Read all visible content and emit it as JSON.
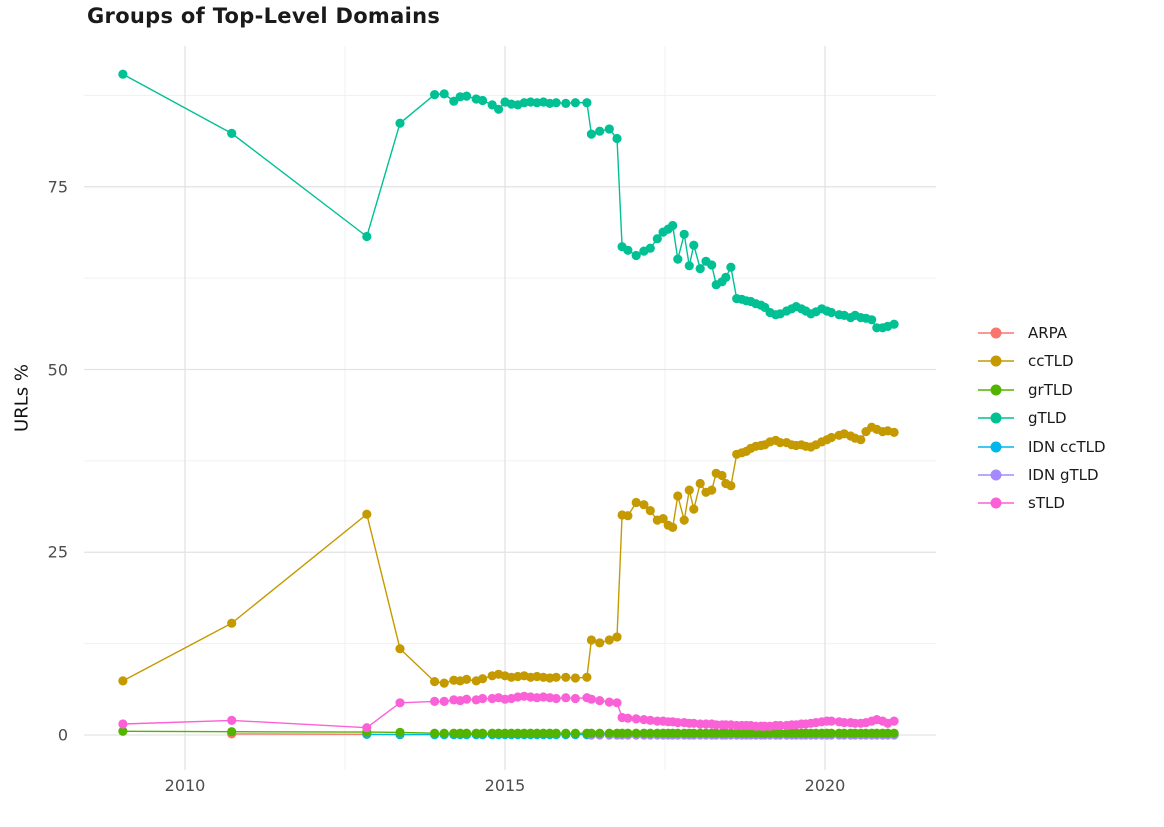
{
  "title": "Groups of Top-Level Domains",
  "chart_data": {
    "type": "line",
    "title": "Groups of Top-Level Domains",
    "xlabel": "",
    "ylabel": "URLs %",
    "x_ticks": [
      2010,
      2015,
      2020
    ],
    "x_tick_labels": [
      "2010",
      "2015",
      "2020"
    ],
    "y_ticks": [
      0,
      25,
      50,
      75
    ],
    "y_tick_labels": [
      "0",
      "25",
      "50",
      "75"
    ],
    "x_minor_gridlines": [
      2012.5,
      2017.5
    ],
    "y_minor_gridlines": [
      12.5,
      37.5,
      62.5,
      87.5
    ],
    "xlim": [
      2008.4,
      2021.8
    ],
    "ylim": [
      -4.5,
      95
    ],
    "grid": true,
    "legend_position": "right",
    "marker": "circle",
    "dense_x": [
      2013.9,
      2014.05,
      2014.2,
      2014.3,
      2014.4,
      2014.55,
      2014.65,
      2014.8,
      2014.9,
      2015.0,
      2015.1,
      2015.2,
      2015.3,
      2015.4,
      2015.5,
      2015.6,
      2015.7,
      2015.8,
      2015.95,
      2016.1,
      2016.28,
      2016.35,
      2016.48,
      2016.63,
      2016.75,
      2016.83,
      2016.92,
      2017.05,
      2017.17,
      2017.27,
      2017.38,
      2017.47,
      2017.55,
      2017.62,
      2017.7,
      2017.8,
      2017.88,
      2017.95,
      2018.05,
      2018.14,
      2018.23,
      2018.3,
      2018.39,
      2018.45,
      2018.53,
      2018.62,
      2018.7,
      2018.77,
      2018.84,
      2018.92,
      2019.0,
      2019.06,
      2019.14,
      2019.23,
      2019.3,
      2019.4,
      2019.48,
      2019.55,
      2019.63,
      2019.7,
      2019.78,
      2019.86,
      2019.95,
      2020.03,
      2020.1,
      2020.22,
      2020.3,
      2020.4,
      2020.47,
      2020.56,
      2020.64,
      2020.73,
      2020.81,
      2020.9,
      2020.98,
      2021.08
    ],
    "series": [
      {
        "name": "ARPA",
        "color": "#F8766D",
        "points": [
          [
            2010.73,
            0.15
          ],
          [
            2012.84,
            0.1
          ]
        ]
      },
      {
        "name": "ccTLD",
        "color": "#C49A00",
        "points": [
          [
            2009.03,
            7.4
          ],
          [
            2010.73,
            15.3
          ],
          [
            2012.84,
            30.2
          ],
          [
            2013.36,
            11.8
          ]
        ],
        "dense_values": [
          7.3,
          7.1,
          7.5,
          7.4,
          7.6,
          7.4,
          7.7,
          8.1,
          8.3,
          8.1,
          7.9,
          8.0,
          8.1,
          7.9,
          8.0,
          7.9,
          7.8,
          7.9,
          7.9,
          7.8,
          7.9,
          13.0,
          12.6,
          13.0,
          13.4,
          30.1,
          30.0,
          31.8,
          31.5,
          30.7,
          29.4,
          29.6,
          28.7,
          28.4,
          32.7,
          29.4,
          33.5,
          30.9,
          34.4,
          33.2,
          33.5,
          35.8,
          35.5,
          34.4,
          34.1,
          38.4,
          38.6,
          38.8,
          39.2,
          39.5,
          39.6,
          39.7,
          40.1,
          40.3,
          40.0,
          40.0,
          39.7,
          39.6,
          39.7,
          39.5,
          39.4,
          39.7,
          40.1,
          40.4,
          40.7,
          41.0,
          41.2,
          40.9,
          40.6,
          40.4,
          41.5,
          42.1,
          41.8,
          41.5,
          41.6,
          41.4
        ]
      },
      {
        "name": "grTLD",
        "color": "#53B400",
        "points": [
          [
            2009.03,
            0.5
          ],
          [
            2010.73,
            0.45
          ],
          [
            2012.84,
            0.4
          ],
          [
            2013.36,
            0.35
          ]
        ],
        "dense_from": 2013.9,
        "dense_value": 0.25
      },
      {
        "name": "gTLD",
        "color": "#00C094",
        "points": [
          [
            2009.03,
            90.4
          ],
          [
            2010.73,
            82.3
          ],
          [
            2012.84,
            68.2
          ],
          [
            2013.36,
            83.7
          ]
        ],
        "dense_values": [
          87.6,
          87.7,
          86.7,
          87.3,
          87.4,
          87.0,
          86.8,
          86.2,
          85.6,
          86.6,
          86.3,
          86.2,
          86.5,
          86.6,
          86.5,
          86.6,
          86.4,
          86.5,
          86.4,
          86.5,
          86.5,
          82.2,
          82.6,
          82.9,
          81.6,
          66.8,
          66.3,
          65.6,
          66.2,
          66.6,
          67.9,
          68.8,
          69.2,
          69.7,
          65.1,
          68.5,
          64.2,
          67.0,
          63.8,
          64.8,
          64.3,
          61.6,
          62.0,
          62.6,
          64.0,
          59.7,
          59.6,
          59.4,
          59.3,
          59.0,
          58.8,
          58.5,
          57.8,
          57.5,
          57.6,
          58.0,
          58.3,
          58.6,
          58.3,
          58.0,
          57.6,
          57.9,
          58.3,
          58.0,
          57.8,
          57.5,
          57.4,
          57.1,
          57.4,
          57.1,
          57.0,
          56.8,
          55.7,
          55.7,
          55.9,
          56.2
        ]
      },
      {
        "name": "IDN ccTLD",
        "color": "#00B6EB",
        "points": [
          [
            2012.84,
            0.1
          ],
          [
            2013.36,
            0.05
          ]
        ],
        "dense_from": 2013.9,
        "dense_value": 0.05
      },
      {
        "name": "IDN gTLD",
        "color": "#A58AFF",
        "points": [],
        "dense_from": 2016.35,
        "dense_value": 0.0
      },
      {
        "name": "sTLD",
        "color": "#FB61D7",
        "points": [
          [
            2009.03,
            1.5
          ],
          [
            2010.73,
            2.0
          ],
          [
            2012.84,
            1.0
          ],
          [
            2013.36,
            4.4
          ]
        ],
        "dense_values": [
          4.6,
          4.6,
          4.8,
          4.7,
          4.9,
          4.8,
          5.0,
          5.0,
          5.1,
          4.9,
          5.0,
          5.2,
          5.3,
          5.2,
          5.1,
          5.2,
          5.1,
          5.0,
          5.1,
          5.0,
          5.1,
          4.9,
          4.7,
          4.5,
          4.4,
          2.4,
          2.3,
          2.2,
          2.1,
          2.0,
          1.9,
          1.9,
          1.8,
          1.8,
          1.7,
          1.7,
          1.6,
          1.6,
          1.5,
          1.5,
          1.5,
          1.4,
          1.4,
          1.4,
          1.4,
          1.3,
          1.3,
          1.3,
          1.3,
          1.2,
          1.2,
          1.2,
          1.2,
          1.3,
          1.3,
          1.3,
          1.4,
          1.4,
          1.5,
          1.5,
          1.6,
          1.7,
          1.8,
          1.9,
          1.9,
          1.8,
          1.7,
          1.7,
          1.6,
          1.6,
          1.7,
          1.9,
          2.1,
          1.9,
          1.6,
          1.9
        ]
      }
    ],
    "colors": {
      "major_gridline": "#e3e3e3",
      "minor_gridline": "#f0f0f0",
      "axis_text": "#4d4d4d",
      "background": "#ffffff"
    }
  }
}
